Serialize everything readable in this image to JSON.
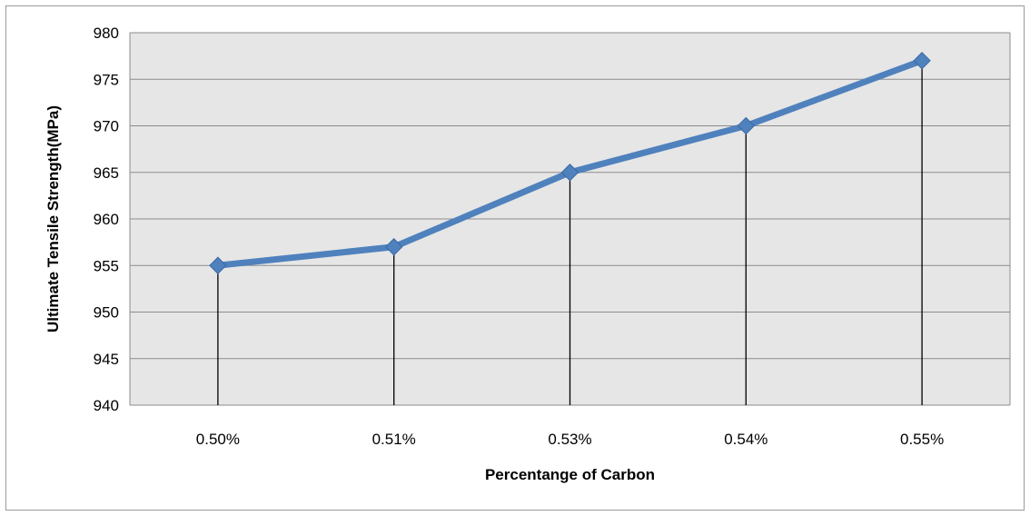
{
  "chart_data": {
    "type": "line",
    "categories": [
      "0.50%",
      "0.51%",
      "0.53%",
      "0.54%",
      "0.55%"
    ],
    "series": [
      {
        "values": [
          955,
          957,
          965,
          970,
          977
        ]
      }
    ],
    "xlabel": "Percentange of Carbon",
    "ylabel": "Ultimate Tensile Strength(MPa)",
    "ylim": [
      940,
      980
    ],
    "yticks": [
      940,
      945,
      950,
      955,
      960,
      965,
      970,
      975,
      980
    ],
    "grid": true,
    "drop_lines": true,
    "legend": "none",
    "colors": {
      "line": "#4f81bd",
      "marker": "#4f81bd",
      "plot_bg": "#e6e6e6",
      "grid": "#8c8c8c",
      "drop_line": "#000000"
    }
  }
}
